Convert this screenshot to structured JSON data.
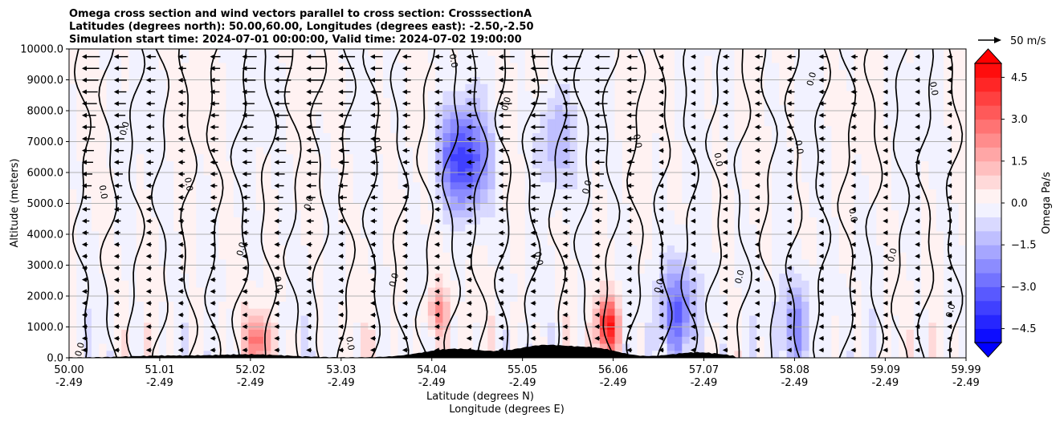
{
  "chart_data": {
    "type": "heatmap",
    "title": [
      "Omega cross section and wind vectors parallel to cross section: CrosssectionA",
      "Latitudes (degrees north): 50.00,60.00, Longitudes (degrees east): -2.50,-2.50",
      "Simulation start time: 2024-07-01 00:00:00, Valid time: 2024-07-02 19:00:00"
    ],
    "xlabel_line1": "Latitude (degrees N)",
    "xlabel_line2": "Longitude (degrees E)",
    "ylabel": "Altitude (meters)",
    "x_ticks": [
      {
        "lat": "50.00",
        "lon": "-2.49"
      },
      {
        "lat": "51.01",
        "lon": "-2.49"
      },
      {
        "lat": "52.02",
        "lon": "-2.49"
      },
      {
        "lat": "53.03",
        "lon": "-2.49"
      },
      {
        "lat": "54.04",
        "lon": "-2.49"
      },
      {
        "lat": "55.05",
        "lon": "-2.49"
      },
      {
        "lat": "56.06",
        "lon": "-2.49"
      },
      {
        "lat": "57.07",
        "lon": "-2.49"
      },
      {
        "lat": "58.08",
        "lon": "-2.49"
      },
      {
        "lat": "59.09",
        "lon": "-2.49"
      },
      {
        "lat": "59.99",
        "lon": "-2.49"
      }
    ],
    "xlim": [
      50.0,
      59.99
    ],
    "y_ticks": [
      "0.0",
      "1000.0",
      "2000.0",
      "3000.0",
      "4000.0",
      "5000.0",
      "6000.0",
      "7000.0",
      "8000.0",
      "9000.0",
      "10000.0"
    ],
    "ylim": [
      0,
      10000
    ],
    "grid": "horizontal",
    "colorbar": {
      "label": "Omega Pa/s",
      "ticks": [
        "−4.5",
        "−3.0",
        "−1.5",
        "0.0",
        "1.5",
        "3.0",
        "4.5"
      ],
      "tick_values": [
        -4.5,
        -3.0,
        -1.5,
        0.0,
        1.5,
        3.0,
        4.5
      ],
      "range": [
        -5.0,
        5.0
      ],
      "levels": 20,
      "colormap": "bwr",
      "extend": "both"
    },
    "quiver_key": {
      "label": "50 m/s",
      "speed": 50
    },
    "contour_label": "0.0",
    "features": {
      "strong_descent_centers": [
        {
          "lat": 54.3,
          "alt": 6500,
          "omega": -2.5
        },
        {
          "lat": 54.5,
          "alt": 6300,
          "omega": -2.2
        },
        {
          "lat": 55.4,
          "alt": 7000,
          "omega": -1.5
        },
        {
          "lat": 56.8,
          "alt": 1500,
          "omega": -3.0
        },
        {
          "lat": 58.1,
          "alt": 1000,
          "omega": -2.0
        }
      ],
      "strong_ascent_centers": [
        {
          "lat": 54.1,
          "alt": 1500,
          "omega": 2.0
        },
        {
          "lat": 56.0,
          "alt": 1000,
          "omega": 4.5
        },
        {
          "lat": 52.1,
          "alt": 500,
          "omega": 3.0
        }
      ]
    },
    "colors": {
      "positive_max": "#ff0000",
      "negative_max": "#0000ff",
      "neutral": "#ffffff",
      "terrain": "#000000"
    }
  }
}
